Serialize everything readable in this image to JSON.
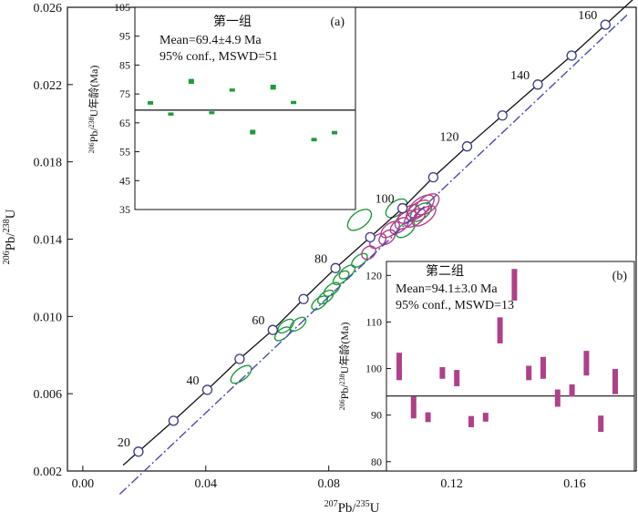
{
  "chart_data": [
    {
      "type": "scatter",
      "subtype": "concordia",
      "xlabel_parts": [
        "207",
        "Pb/",
        "235",
        "U"
      ],
      "ylabel_parts": [
        "206",
        "Pb/",
        "238",
        "U"
      ],
      "xlim": [
        -0.005,
        0.18
      ],
      "ylim": [
        0.002,
        0.026
      ],
      "x_ticks": [
        0.0,
        0.04,
        0.08,
        0.12,
        0.16
      ],
      "x_tick_labels": [
        "0.00",
        "0.04",
        "0.08",
        "0.12",
        "0.16"
      ],
      "y_ticks": [
        0.002,
        0.006,
        0.01,
        0.014,
        0.018,
        0.022,
        0.026
      ],
      "y_tick_labels": [
        "0.002",
        "0.006",
        "0.010",
        "0.014",
        "0.018",
        "0.022",
        "0.026"
      ],
      "concordia_ages": [
        {
          "x": 0.0181,
          "y": 0.003,
          "label": "20"
        },
        {
          "x": 0.0295,
          "y": 0.0046,
          "label": ""
        },
        {
          "x": 0.0405,
          "y": 0.0062,
          "label": "40"
        },
        {
          "x": 0.051,
          "y": 0.0078,
          "label": ""
        },
        {
          "x": 0.0618,
          "y": 0.0093,
          "label": "60"
        },
        {
          "x": 0.0718,
          "y": 0.0109,
          "label": ""
        },
        {
          "x": 0.0822,
          "y": 0.0125,
          "label": "80"
        },
        {
          "x": 0.0935,
          "y": 0.0141,
          "label": ""
        },
        {
          "x": 0.104,
          "y": 0.0156,
          "label": "100"
        },
        {
          "x": 0.114,
          "y": 0.0172,
          "label": ""
        },
        {
          "x": 0.125,
          "y": 0.0188,
          "label": "120"
        },
        {
          "x": 0.1365,
          "y": 0.0204,
          "label": ""
        },
        {
          "x": 0.148,
          "y": 0.022,
          "label": "140"
        },
        {
          "x": 0.159,
          "y": 0.0235,
          "label": ""
        },
        {
          "x": 0.17,
          "y": 0.0251,
          "label": "160"
        }
      ],
      "series": [
        {
          "group": "1",
          "color": "#1e9a3c",
          "ellipses": [
            {
              "x": 0.0515,
              "y": 0.007,
              "rx": 0.004,
              "ry": 0.0003
            },
            {
              "x": 0.065,
              "y": 0.0091,
              "rx": 0.003,
              "ry": 0.00025
            },
            {
              "x": 0.066,
              "y": 0.0095,
              "rx": 0.003,
              "ry": 0.00025
            },
            {
              "x": 0.07,
              "y": 0.0096,
              "rx": 0.003,
              "ry": 0.00025
            },
            {
              "x": 0.077,
              "y": 0.0107,
              "rx": 0.003,
              "ry": 0.00025
            },
            {
              "x": 0.079,
              "y": 0.011,
              "rx": 0.003,
              "ry": 0.00025
            },
            {
              "x": 0.081,
              "y": 0.0114,
              "rx": 0.003,
              "ry": 0.00025
            },
            {
              "x": 0.084,
              "y": 0.012,
              "rx": 0.003,
              "ry": 0.00025
            },
            {
              "x": 0.086,
              "y": 0.0123,
              "rx": 0.003,
              "ry": 0.00025
            },
            {
              "x": 0.09,
              "y": 0.0129,
              "rx": 0.003,
              "ry": 0.00025
            },
            {
              "x": 0.09,
              "y": 0.015,
              "rx": 0.0045,
              "ry": 0.0004
            },
            {
              "x": 0.102,
              "y": 0.0156,
              "rx": 0.004,
              "ry": 0.00035
            },
            {
              "x": 0.11,
              "y": 0.0154,
              "rx": 0.004,
              "ry": 0.00035
            },
            {
              "x": 0.105,
              "y": 0.0145,
              "rx": 0.0035,
              "ry": 0.0003
            }
          ]
        },
        {
          "group": "2",
          "color": "#b0408a",
          "ellipses": [
            {
              "x": 0.093,
              "y": 0.0133,
              "rx": 0.0025,
              "ry": 0.0003
            },
            {
              "x": 0.096,
              "y": 0.0139,
              "rx": 0.003,
              "ry": 0.0003
            },
            {
              "x": 0.099,
              "y": 0.0141,
              "rx": 0.003,
              "ry": 0.0003
            },
            {
              "x": 0.1,
              "y": 0.0145,
              "rx": 0.0035,
              "ry": 0.0003
            },
            {
              "x": 0.103,
              "y": 0.0147,
              "rx": 0.0035,
              "ry": 0.0003
            },
            {
              "x": 0.105,
              "y": 0.015,
              "rx": 0.004,
              "ry": 0.00035
            },
            {
              "x": 0.108,
              "y": 0.0151,
              "rx": 0.004,
              "ry": 0.00035
            },
            {
              "x": 0.106,
              "y": 0.0153,
              "rx": 0.004,
              "ry": 0.00035
            },
            {
              "x": 0.109,
              "y": 0.0155,
              "rx": 0.0045,
              "ry": 0.00035
            },
            {
              "x": 0.11,
              "y": 0.0157,
              "rx": 0.005,
              "ry": 0.0004
            },
            {
              "x": 0.112,
              "y": 0.0158,
              "rx": 0.0045,
              "ry": 0.0004
            },
            {
              "x": 0.111,
              "y": 0.0152,
              "rx": 0.0045,
              "ry": 0.00035
            }
          ]
        }
      ],
      "reference_line": {
        "x1": 0.012,
        "y1": 0.0008,
        "x2": 0.177,
        "y2": 0.0256,
        "style": "dash-dot",
        "color": "#4a4ab0"
      }
    },
    {
      "type": "bar",
      "subtype": "weighted-mean-age",
      "panel": "(a)",
      "title": "第一组",
      "mean_text": "Mean=69.4±4.9 Ma",
      "conf_text": "95% conf., MSWD=51",
      "ylabel_parts": [
        "206",
        "Pb/",
        "238",
        "U年龄(Ma)"
      ],
      "ylim": [
        35,
        105
      ],
      "y_ticks": [
        35,
        45,
        55,
        65,
        75,
        85,
        95,
        105
      ],
      "mean": 69.4,
      "color": "#1e9a3c",
      "bars": [
        {
          "low": 71.3,
          "high": 72.5
        },
        {
          "low": 67.5,
          "high": 68.6
        },
        {
          "low": 78.5,
          "high": 80.2
        },
        {
          "low": 68.0,
          "high": 69.0
        },
        {
          "low": 75.8,
          "high": 76.9
        },
        {
          "low": 61.0,
          "high": 62.6
        },
        {
          "low": 76.5,
          "high": 78.2
        },
        {
          "low": 71.5,
          "high": 72.6
        },
        {
          "low": 58.6,
          "high": 59.8
        },
        {
          "low": 61.0,
          "high": 62.2
        }
      ]
    },
    {
      "type": "bar",
      "subtype": "weighted-mean-age",
      "panel": "(b)",
      "title": "第二组",
      "mean_text": "Mean=94.1±3.0 Ma",
      "conf_text": "95% conf., MSWD=13",
      "ylabel_parts": [
        "206",
        "Pb/",
        "238",
        "U年龄(Ma)"
      ],
      "ylim": [
        78,
        123
      ],
      "y_ticks": [
        80,
        90,
        100,
        110,
        120
      ],
      "mean": 94.1,
      "color": "#b0408a",
      "bars": [
        {
          "low": 97.5,
          "high": 103.4
        },
        {
          "low": 89.3,
          "high": 94.0
        },
        {
          "low": 88.5,
          "high": 90.6
        },
        {
          "low": 97.8,
          "high": 100.3
        },
        {
          "low": 96.2,
          "high": 99.7
        },
        {
          "low": 87.4,
          "high": 89.8
        },
        {
          "low": 88.6,
          "high": 90.5
        },
        {
          "low": 105.4,
          "high": 111.0
        },
        {
          "low": 114.6,
          "high": 121.4
        },
        {
          "low": 97.5,
          "high": 100.6
        },
        {
          "low": 97.8,
          "high": 102.5
        },
        {
          "low": 91.8,
          "high": 95.5
        },
        {
          "low": 94.0,
          "high": 96.6
        },
        {
          "low": 98.5,
          "high": 103.8
        },
        {
          "low": 86.4,
          "high": 89.9
        },
        {
          "low": 94.5,
          "high": 99.9
        }
      ]
    }
  ]
}
